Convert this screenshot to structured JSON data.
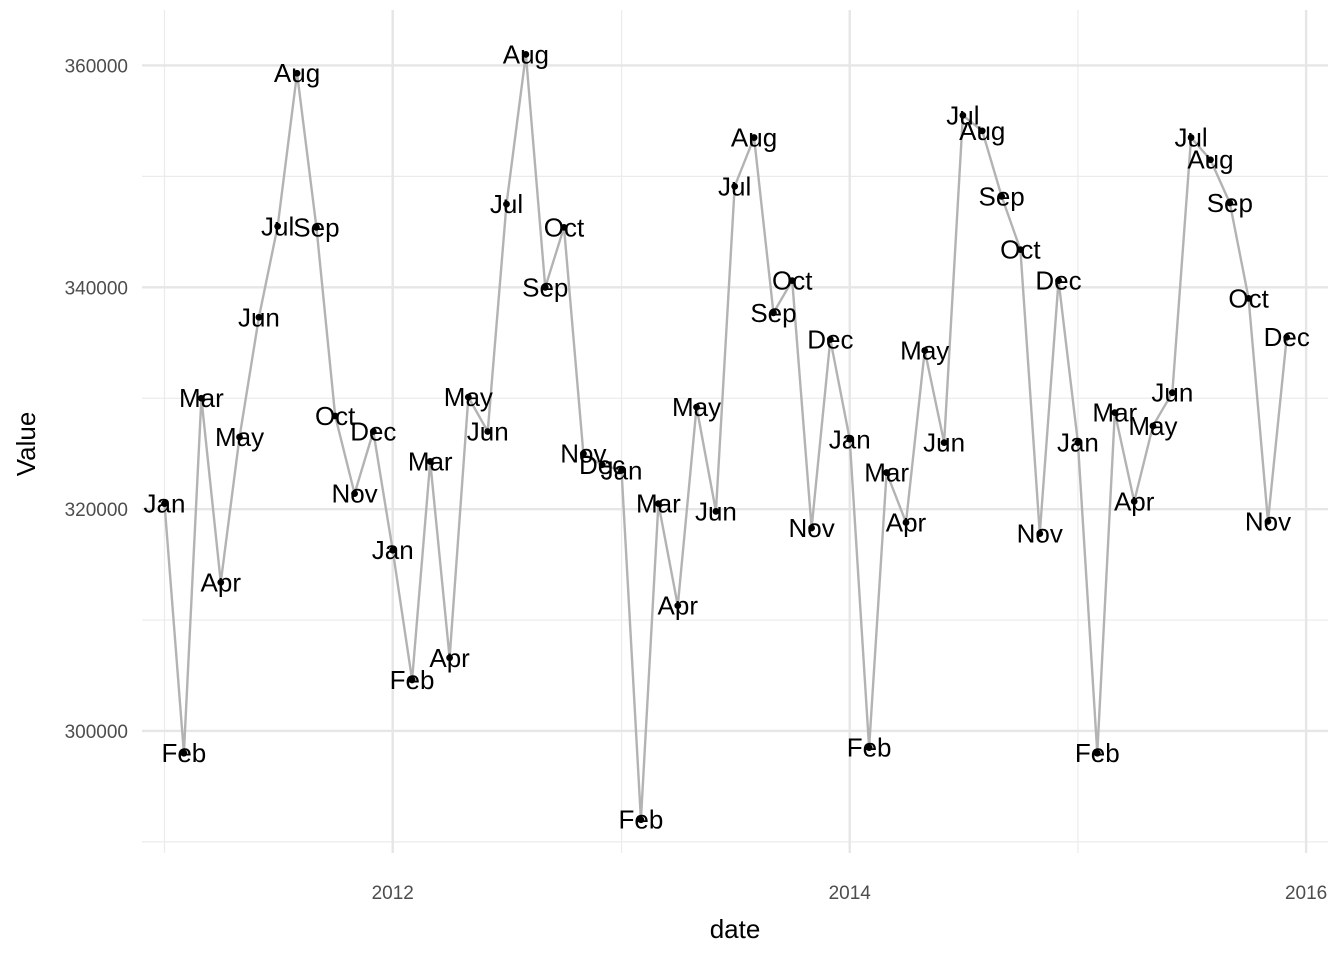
{
  "chart_data": {
    "type": "line",
    "xlabel": "date",
    "ylabel": "Value",
    "x_ticks": [
      "2012",
      "2014",
      "2016"
    ],
    "y_ticks": [
      300000,
      320000,
      340000,
      360000
    ],
    "xlim": [
      "2010-11-26",
      "2016-02-05"
    ],
    "ylim": [
      289000,
      365000
    ],
    "grid": true,
    "line_color": "#b3b3b3",
    "point_color": "#000000",
    "points": [
      {
        "date": "2011-01-01",
        "value": 320500,
        "label": "Jan"
      },
      {
        "date": "2011-02-01",
        "value": 298000,
        "label": "Feb"
      },
      {
        "date": "2011-03-01",
        "value": 330000,
        "label": "Mar"
      },
      {
        "date": "2011-04-01",
        "value": 313400,
        "label": "Apr"
      },
      {
        "date": "2011-05-01",
        "value": 326500,
        "label": "May"
      },
      {
        "date": "2011-06-01",
        "value": 337300,
        "label": "Jun"
      },
      {
        "date": "2011-07-01",
        "value": 345500,
        "label": "Jul"
      },
      {
        "date": "2011-08-01",
        "value": 359300,
        "label": "Aug"
      },
      {
        "date": "2011-09-01",
        "value": 345400,
        "label": "Sep"
      },
      {
        "date": "2011-10-01",
        "value": 328400,
        "label": "Oct"
      },
      {
        "date": "2011-11-01",
        "value": 321400,
        "label": "Nov"
      },
      {
        "date": "2011-12-01",
        "value": 327000,
        "label": "Dec"
      },
      {
        "date": "2012-01-01",
        "value": 316300,
        "label": "Jan"
      },
      {
        "date": "2012-02-01",
        "value": 304600,
        "label": "Feb"
      },
      {
        "date": "2012-03-01",
        "value": 324300,
        "label": "Mar"
      },
      {
        "date": "2012-04-01",
        "value": 306600,
        "label": "Apr"
      },
      {
        "date": "2012-05-01",
        "value": 330100,
        "label": "May"
      },
      {
        "date": "2012-06-01",
        "value": 327000,
        "label": "Jun"
      },
      {
        "date": "2012-07-01",
        "value": 347500,
        "label": "Jul"
      },
      {
        "date": "2012-08-01",
        "value": 361000,
        "label": "Aug"
      },
      {
        "date": "2012-09-01",
        "value": 340000,
        "label": "Sep"
      },
      {
        "date": "2012-10-01",
        "value": 345400,
        "label": "Oct"
      },
      {
        "date": "2012-11-01",
        "value": 325000,
        "label": "Nov"
      },
      {
        "date": "2012-12-01",
        "value": 324000,
        "label": "Dec"
      },
      {
        "date": "2013-01-01",
        "value": 323500,
        "label": "Jan"
      },
      {
        "date": "2013-02-01",
        "value": 292000,
        "label": "Feb"
      },
      {
        "date": "2013-03-01",
        "value": 320500,
        "label": "Mar"
      },
      {
        "date": "2013-04-01",
        "value": 311300,
        "label": "Apr"
      },
      {
        "date": "2013-05-01",
        "value": 329200,
        "label": "May"
      },
      {
        "date": "2013-06-01",
        "value": 319800,
        "label": "Jun"
      },
      {
        "date": "2013-07-01",
        "value": 349100,
        "label": "Jul"
      },
      {
        "date": "2013-08-01",
        "value": 353500,
        "label": "Aug"
      },
      {
        "date": "2013-09-01",
        "value": 337700,
        "label": "Sep"
      },
      {
        "date": "2013-10-01",
        "value": 340600,
        "label": "Oct"
      },
      {
        "date": "2013-11-01",
        "value": 318300,
        "label": "Nov"
      },
      {
        "date": "2013-12-01",
        "value": 335300,
        "label": "Dec"
      },
      {
        "date": "2014-01-01",
        "value": 326300,
        "label": "Jan"
      },
      {
        "date": "2014-02-01",
        "value": 298500,
        "label": "Feb"
      },
      {
        "date": "2014-03-01",
        "value": 323300,
        "label": "Mar"
      },
      {
        "date": "2014-04-01",
        "value": 318800,
        "label": "Apr"
      },
      {
        "date": "2014-05-01",
        "value": 334300,
        "label": "May"
      },
      {
        "date": "2014-06-01",
        "value": 326000,
        "label": "Jun"
      },
      {
        "date": "2014-07-01",
        "value": 355500,
        "label": "Jul"
      },
      {
        "date": "2014-08-01",
        "value": 354100,
        "label": "Aug"
      },
      {
        "date": "2014-09-01",
        "value": 348200,
        "label": "Sep"
      },
      {
        "date": "2014-10-01",
        "value": 343400,
        "label": "Oct"
      },
      {
        "date": "2014-11-01",
        "value": 317800,
        "label": "Nov"
      },
      {
        "date": "2014-12-01",
        "value": 340600,
        "label": "Dec"
      },
      {
        "date": "2015-01-01",
        "value": 326000,
        "label": "Jan"
      },
      {
        "date": "2015-02-01",
        "value": 298000,
        "label": "Feb"
      },
      {
        "date": "2015-03-01",
        "value": 328700,
        "label": "Mar"
      },
      {
        "date": "2015-04-01",
        "value": 320700,
        "label": "Apr"
      },
      {
        "date": "2015-05-01",
        "value": 327500,
        "label": "May"
      },
      {
        "date": "2015-06-01",
        "value": 330500,
        "label": "Jun"
      },
      {
        "date": "2015-07-01",
        "value": 353500,
        "label": "Jul"
      },
      {
        "date": "2015-08-01",
        "value": 351500,
        "label": "Aug"
      },
      {
        "date": "2015-09-01",
        "value": 347600,
        "label": "Sep"
      },
      {
        "date": "2015-10-01",
        "value": 339000,
        "label": "Oct"
      },
      {
        "date": "2015-11-01",
        "value": 318900,
        "label": "Nov"
      },
      {
        "date": "2015-12-01",
        "value": 335500,
        "label": "Dec"
      }
    ]
  }
}
